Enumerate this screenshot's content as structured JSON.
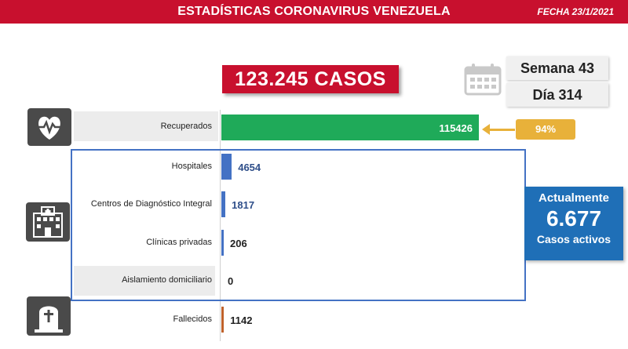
{
  "header": {
    "title": "ESTADÍSTICAS CORONAVIRUS VENEZUELA",
    "date": "FECHA 23/1/2021"
  },
  "total": {
    "label": "123.245 CASOS"
  },
  "calendar": {
    "week": "Semana 43",
    "day": "Día 314"
  },
  "recovered_percent": "94%",
  "active": {
    "title": "Actualmente",
    "number": "6.677",
    "subtitle": "Casos activos"
  },
  "icons": [
    "heart-pulse-icon",
    "hospital-icon",
    "tombstone-icon",
    "calendar-icon"
  ],
  "colors": {
    "header": "#c8102e",
    "recovered": "#1faa59",
    "hospital": "#4472c4",
    "deaths": "#c0622b",
    "badge": "#e8b13a",
    "active": "#1f6fb7"
  },
  "chart_data": {
    "type": "bar",
    "orientation": "horizontal",
    "categories": [
      "Recuperados",
      "Hospitales",
      "Centros de Diagnóstico Integral",
      "Clínicas privadas",
      "Aislamiento domiciliario",
      "Fallecidos"
    ],
    "values": [
      115426,
      4654,
      1817,
      206,
      0,
      1142
    ],
    "value_labels": [
      "115426",
      "4654",
      "1817",
      "206",
      "0",
      "1142"
    ],
    "title": "",
    "xlabel": "",
    "ylabel": ""
  }
}
